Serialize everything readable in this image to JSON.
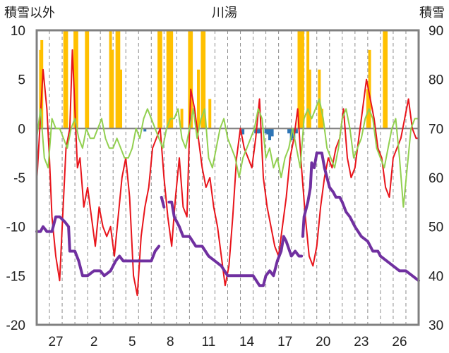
{
  "chart_data": {
    "type": "line",
    "title": "川湯",
    "ylabel_left": "積雪以外",
    "ylabel_right": "積雪",
    "ylim_left": [
      -20,
      10
    ],
    "ylim_right": [
      30,
      90
    ],
    "yticks_left": [
      10,
      5,
      0,
      -5,
      -10,
      -15,
      -20
    ],
    "yticks_right": [
      90,
      80,
      70,
      60,
      50,
      40,
      30
    ],
    "x_tick_labels": [
      "27",
      "2",
      "5",
      "8",
      "11",
      "14",
      "17",
      "20",
      "23",
      "26"
    ],
    "x_tick_positions": [
      1.5,
      4.5,
      7.5,
      10.5,
      13.5,
      16.5,
      19.5,
      22.5,
      25.5,
      28.5
    ],
    "x_range": [
      0,
      30
    ],
    "grid_x_positions": [
      1,
      2,
      3,
      4,
      5,
      6,
      7,
      8,
      9,
      10,
      11,
      12,
      13,
      14,
      15,
      16,
      17,
      18,
      19,
      20,
      21,
      22,
      23,
      24,
      25,
      26,
      27,
      28,
      29
    ],
    "grid": "vertical dashed",
    "colors": {
      "max_temp": "#e8141b",
      "min_temp": "#92d050",
      "snowfall": "#ffc000",
      "snow_depth": "#7030a0",
      "precip": "#2e75b6",
      "zero_line": "#808080",
      "frame": "#808080"
    },
    "series": [
      {
        "axis": "left",
        "kind": "line",
        "color": "#e8141b",
        "x": [
          0.0,
          0.2,
          0.5,
          0.8,
          1.0,
          1.2,
          1.5,
          1.8,
          2.0,
          2.3,
          2.6,
          2.8,
          3.0,
          3.2,
          3.4,
          3.7,
          4.0,
          4.3,
          4.6,
          4.9,
          5.2,
          5.5,
          5.8,
          6.1,
          6.4,
          6.7,
          7.0,
          7.3,
          7.6,
          7.9,
          8.2,
          8.5,
          8.8,
          9.1,
          9.4,
          9.7,
          10.0,
          10.3,
          10.6,
          10.9,
          11.2,
          11.5,
          11.8,
          12.1,
          12.4,
          12.7,
          13.0,
          13.3,
          13.6,
          13.9,
          14.2,
          14.5,
          14.8,
          15.1,
          15.4,
          15.7,
          16.0,
          16.3,
          16.6,
          16.9,
          17.2,
          17.5,
          17.8,
          18.1,
          18.4,
          18.7,
          19.0,
          19.3,
          19.6,
          19.9,
          20.2,
          20.5,
          20.8,
          21.1,
          21.4,
          21.7,
          22.0,
          22.3,
          22.6,
          22.9,
          23.2,
          23.5,
          23.8,
          24.1,
          24.4,
          24.7,
          25.0,
          25.3,
          25.6,
          25.9,
          26.2,
          26.5,
          26.8,
          27.1,
          27.4,
          27.7,
          28.0,
          28.3,
          28.6,
          28.9,
          29.2,
          29.5,
          29.8,
          30.0
        ],
        "y": [
          -5.5,
          -1,
          6,
          2,
          -3,
          -9,
          -13,
          -15.5,
          -10,
          -2,
          0,
          8,
          2,
          -4,
          -3,
          -8,
          -6,
          -9,
          -12,
          -8,
          -10,
          -11,
          -10,
          -13,
          -9,
          -5,
          -3,
          -7,
          -15,
          -17,
          -11,
          -8,
          -6,
          -2,
          -1,
          0,
          -5,
          -9,
          -12,
          -7,
          -3,
          -8,
          -9,
          4,
          2,
          -1,
          -4,
          -6,
          -5,
          -8,
          -10,
          -13,
          -16,
          -14,
          -9,
          -3,
          0,
          -2,
          -3,
          -4,
          -1,
          3,
          -5,
          -8,
          -10,
          -12,
          -13,
          -10,
          -7,
          -3,
          -1,
          2,
          -4,
          -9,
          -13,
          -14,
          -12,
          -8,
          -5,
          -3,
          -4,
          -2,
          -1,
          2,
          -3,
          -5,
          -4,
          -1,
          2,
          5,
          3,
          1,
          -2,
          -3,
          -6,
          -7,
          -3,
          -2,
          -1,
          1,
          3,
          0,
          -1,
          -1
        ],
        "style": "solid",
        "width": 2
      },
      {
        "axis": "left",
        "kind": "line",
        "color": "#92d050",
        "x": [
          0.0,
          0.3,
          0.6,
          0.9,
          1.2,
          1.5,
          1.8,
          2.1,
          2.4,
          2.7,
          3.0,
          3.3,
          3.6,
          3.9,
          4.2,
          4.5,
          4.8,
          5.1,
          5.4,
          5.7,
          6.0,
          6.3,
          6.6,
          6.9,
          7.2,
          7.5,
          7.8,
          8.1,
          8.4,
          8.7,
          9.0,
          9.3,
          9.6,
          9.9,
          10.2,
          10.5,
          10.8,
          11.1,
          11.4,
          11.7,
          12.0,
          12.3,
          12.6,
          12.9,
          13.2,
          13.5,
          13.8,
          14.1,
          14.4,
          14.7,
          15.0,
          15.3,
          15.6,
          15.9,
          16.2,
          16.5,
          16.8,
          17.1,
          17.4,
          17.7,
          18.0,
          18.3,
          18.6,
          18.9,
          19.2,
          19.5,
          19.8,
          20.1,
          20.4,
          20.7,
          21.0,
          21.3,
          21.6,
          21.9,
          22.2,
          22.5,
          22.8,
          23.1,
          23.4,
          23.7,
          24.0,
          24.3,
          24.6,
          24.9,
          25.2,
          25.5,
          25.8,
          26.1,
          26.4,
          26.7,
          27.0,
          27.3,
          27.6,
          27.9,
          28.2,
          28.5,
          28.8,
          29.1,
          29.4,
          29.7,
          30.0
        ],
        "y": [
          -1,
          2,
          -3,
          -4,
          1,
          0,
          0,
          -1,
          -2,
          0,
          1,
          -1,
          -2,
          0,
          -1,
          -1,
          0,
          1,
          -1,
          -2,
          -2,
          -1,
          -2,
          -3,
          -3,
          -2,
          0,
          -1,
          1,
          2,
          1,
          0,
          -1,
          -2,
          0,
          1,
          1,
          2,
          -1,
          -2,
          0,
          2,
          -1,
          1,
          2,
          -3,
          -4,
          -2,
          0,
          1,
          -1,
          -2,
          -3,
          -5,
          -3,
          -2,
          -1,
          0,
          2,
          1,
          -3,
          -2,
          -4,
          -3,
          -5,
          -3,
          -2,
          0,
          -2,
          -4,
          1,
          2,
          1,
          2,
          3,
          1,
          -2,
          -3,
          -4,
          -2,
          1,
          2,
          0,
          -3,
          -2,
          -1,
          1,
          2,
          1,
          -2,
          -3,
          -4,
          -2,
          0,
          1,
          -3,
          -8,
          -4,
          0,
          1,
          1
        ],
        "style": "solid",
        "width": 2
      },
      {
        "axis": "left",
        "kind": "bar-up",
        "color": "#ffc000",
        "x": [
          0.3,
          0.4,
          2.2,
          2.35,
          3.0,
          3.15,
          3.9,
          4.0,
          5.8,
          5.95,
          6.3,
          6.45,
          6.6,
          9.6,
          9.75,
          10.3,
          10.45,
          10.6,
          11.4,
          12.0,
          12.15,
          12.7,
          13.0,
          13.15,
          13.6,
          20.6,
          20.75,
          20.9,
          21.3,
          21.45,
          22.2,
          22.4,
          26.0,
          26.15,
          27.3,
          27.45
        ],
        "y": [
          8,
          9,
          10,
          10,
          10,
          10,
          10,
          10,
          10,
          8,
          10,
          10,
          6,
          10,
          10,
          10,
          10,
          10,
          2,
          10,
          10,
          6,
          10,
          10,
          3,
          10,
          10,
          10,
          10,
          6,
          6,
          2,
          4,
          8,
          10,
          10
        ],
        "style": "bars",
        "width": 4
      },
      {
        "axis": "left",
        "kind": "bar-down",
        "color": "#2e75b6",
        "x": [
          8.5,
          16.2,
          17.2,
          17.35,
          17.5,
          18.0,
          18.15,
          18.3,
          18.5,
          19.8,
          20.0,
          20.2,
          20.4
        ],
        "y": [
          -0.3,
          -0.6,
          -0.5,
          -0.5,
          -0.5,
          -0.5,
          -0.6,
          -1.2,
          -0.8,
          -0.5,
          -1.2,
          -1.0,
          -0.5
        ],
        "style": "bars",
        "width": 4
      },
      {
        "axis": "right",
        "kind": "line",
        "color": "#7030a0",
        "segments": [
          {
            "x": [
              0.0,
              0.3,
              0.5,
              0.8,
              1.2,
              1.5,
              1.8,
              2.2,
              2.5,
              2.6,
              3.0,
              3.3,
              3.6,
              4.0,
              4.5,
              5.0,
              5.3,
              5.8,
              6.2,
              6.5,
              6.8,
              7.0,
              7.5,
              8.0,
              8.5,
              8.8,
              9.0,
              9.3,
              9.6
            ],
            "y": [
              49,
              49,
              50,
              49,
              49,
              52,
              52,
              51,
              50,
              45,
              45,
              43,
              40,
              40,
              41,
              41,
              40,
              41,
              43,
              44,
              43,
              43,
              43,
              43,
              43,
              43,
              43,
              45,
              46
            ]
          },
          {
            "x": [
              9.8,
              10.0
            ],
            "y": [
              56,
              54
            ]
          },
          {
            "x": [
              10.4,
              10.6,
              10.8,
              11.0,
              11.2,
              11.5,
              11.8,
              12.0,
              12.5,
              13.0,
              13.5,
              14.0,
              14.5,
              15.0,
              15.5,
              16.0,
              16.5,
              17.0,
              17.5,
              17.8,
              18.0,
              18.3,
              18.6,
              18.9,
              19.2,
              19.4,
              19.6,
              20.0,
              20.3,
              20.6,
              20.8
            ],
            "y": [
              55,
              55,
              52,
              51,
              50,
              48,
              48,
              48,
              46,
              46,
              44,
              43,
              42,
              40,
              40,
              40,
              40,
              40,
              38,
              38,
              40,
              41,
              40,
              43,
              45,
              48,
              47,
              44,
              45,
              44,
              44
            ]
          },
          {
            "x": [
              20.9,
              21.0,
              21.3,
              21.5,
              21.6,
              21.8,
              22.0,
              22.4,
              22.6,
              22.8,
              23.0,
              23.3,
              23.5,
              23.8,
              24.0,
              24.3,
              24.6,
              25.0,
              25.5,
              26.0,
              26.2,
              26.4,
              26.8,
              27.0,
              27.5,
              28.0,
              28.5,
              29.0,
              29.5,
              30.0
            ],
            "y": [
              48,
              52,
              55,
              58,
              63,
              62,
              65,
              65,
              62,
              60,
              58,
              57,
              56,
              56,
              55,
              53,
              52,
              50,
              48,
              47,
              46,
              45,
              45,
              44,
              43,
              42,
              41,
              41,
              40,
              39
            ]
          }
        ],
        "style": "solid",
        "width": 4
      }
    ]
  }
}
